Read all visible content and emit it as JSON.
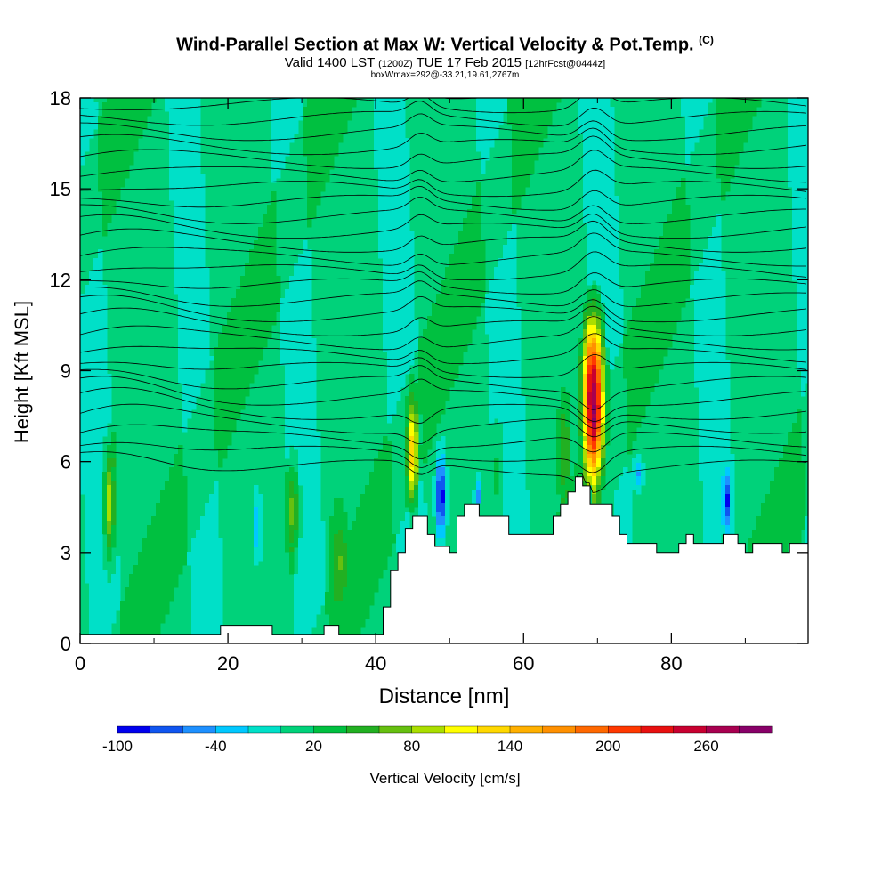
{
  "header": {
    "title_main": "Wind-Parallel Section at Max W: Vertical Velocity & Pot.Temp.",
    "title_mark": "(C)",
    "valid_a": "Valid 1400 LST",
    "valid_b": "(1200Z)",
    "valid_c": "TUE 17 Feb 2015",
    "valid_d": "[12hrFcst@0444z]",
    "box_info": "boxWmax=292@-33.21,19.61,2767m"
  },
  "chart_data": {
    "type": "heatmap",
    "xlabel": "Distance [nm]",
    "ylabel": "Height [Kft MSL]",
    "xlim": [
      0,
      98.5
    ],
    "ylim": [
      0,
      18
    ],
    "x_ticks": [
      0,
      20,
      40,
      60,
      80
    ],
    "y_ticks": [
      0,
      3,
      6,
      9,
      12,
      15,
      18
    ],
    "colorbar": {
      "label": "Vertical Velocity [cm/s]",
      "tick_labels": [
        "-100",
        "-40",
        "20",
        "80",
        "140",
        "200",
        "260"
      ],
      "tick_values": [
        -100,
        -40,
        20,
        80,
        140,
        200,
        260
      ],
      "bin_edges": [
        -100,
        -80,
        -60,
        -40,
        -20,
        0,
        20,
        40,
        60,
        80,
        100,
        120,
        140,
        160,
        180,
        200,
        220,
        240,
        260,
        280,
        300
      ],
      "colors": [
        "#0000ee",
        "#1055f0",
        "#1e90ff",
        "#00c8ff",
        "#00e0c8",
        "#00d27a",
        "#00c040",
        "#22b022",
        "#66c010",
        "#aade00",
        "#ffff00",
        "#ffd800",
        "#ffb000",
        "#ff9000",
        "#ff6800",
        "#ff3800",
        "#e81010",
        "#c80030",
        "#a80050",
        "#880068"
      ]
    },
    "background_value_cm_s": 10,
    "updraft_max_cm_s": 292,
    "features": [
      {
        "x": 69.5,
        "y_bottom": 5.0,
        "y_top": 11.2,
        "half_width": 1.6,
        "peak": 292
      },
      {
        "x": 45.0,
        "y_bottom": 4.2,
        "y_top": 8.5,
        "half_width": 0.9,
        "peak": 140
      },
      {
        "x": 4.0,
        "y_bottom": 2.5,
        "y_top": 6.8,
        "half_width": 0.9,
        "peak": 110
      },
      {
        "x": 28.8,
        "y_bottom": 2.5,
        "y_top": 6.2,
        "half_width": 0.9,
        "peak": 90
      },
      {
        "x": 35.0,
        "y_bottom": 0.8,
        "y_top": 5.0,
        "half_width": 1.4,
        "peak": 50
      },
      {
        "x": 56.5,
        "y_bottom": 3.6,
        "y_top": 7.5,
        "half_width": 0.9,
        "peak": 45
      },
      {
        "x": 65.5,
        "y_bottom": 4.2,
        "y_top": 8.5,
        "half_width": 1.0,
        "peak": 60
      },
      {
        "x": 48.8,
        "y_bottom": 3.2,
        "y_top": 6.5,
        "half_width": 0.8,
        "peak": -100
      },
      {
        "x": 53.8,
        "y_bottom": 3.8,
        "y_top": 5.6,
        "half_width": 0.5,
        "peak": -60
      },
      {
        "x": 87.5,
        "y_bottom": 3.6,
        "y_top": 5.8,
        "half_width": 0.6,
        "peak": -70
      },
      {
        "x": 75.5,
        "y_bottom": 5.0,
        "y_top": 6.2,
        "half_width": 0.8,
        "peak": -45
      },
      {
        "x": 24.0,
        "y_bottom": 2.5,
        "y_top": 5.2,
        "half_width": 0.6,
        "peak": -45
      }
    ],
    "terrain": {
      "x": [
        0,
        1.5,
        3,
        4,
        5,
        6,
        7,
        8,
        9,
        10,
        11,
        12,
        13,
        14,
        15,
        16,
        17,
        18,
        19,
        20,
        21,
        22,
        23,
        24,
        25,
        26,
        27,
        28,
        29,
        30,
        31,
        32,
        33,
        34,
        35,
        36,
        37,
        38,
        39,
        40,
        41,
        42,
        43,
        44,
        45,
        46,
        47,
        48,
        49,
        50,
        51,
        52,
        53,
        54,
        55,
        56,
        57,
        58,
        59,
        60,
        61,
        62,
        63,
        64,
        65,
        66,
        67,
        68,
        69,
        70,
        71,
        72,
        73,
        74,
        75,
        76,
        77,
        78,
        79,
        80,
        81,
        82,
        83,
        84,
        85,
        86,
        87,
        88,
        89,
        90,
        91,
        92,
        93,
        94,
        95,
        96,
        97,
        98.5
      ],
      "height": [
        0.3,
        0.3,
        0.3,
        0.3,
        0.3,
        0.3,
        0.3,
        0.3,
        0.3,
        0.3,
        0.3,
        0.3,
        0.3,
        0.3,
        0.3,
        0.3,
        0.3,
        0.3,
        0.6,
        0.6,
        0.6,
        0.6,
        0.6,
        0.6,
        0.6,
        0.3,
        0.3,
        0.3,
        0.3,
        0.3,
        0.3,
        0.3,
        0.6,
        0.6,
        0.3,
        0.3,
        0.3,
        0.3,
        0.3,
        0.3,
        1.2,
        2.4,
        3.0,
        3.8,
        4.2,
        4.2,
        3.6,
        3.2,
        3.2,
        3.0,
        4.2,
        4.6,
        4.6,
        4.2,
        4.2,
        4.2,
        4.2,
        3.6,
        3.6,
        3.6,
        3.6,
        3.6,
        3.6,
        4.2,
        4.6,
        5.0,
        5.5,
        5.2,
        4.6,
        4.6,
        4.6,
        4.2,
        3.6,
        3.3,
        3.3,
        3.3,
        3.3,
        3.0,
        3.0,
        3.0,
        3.3,
        3.6,
        3.3,
        3.3,
        3.3,
        3.3,
        3.6,
        3.6,
        3.3,
        3.0,
        3.3,
        3.3,
        3.3,
        3.3,
        3.0,
        3.3,
        3.3,
        3.3
      ]
    }
  }
}
